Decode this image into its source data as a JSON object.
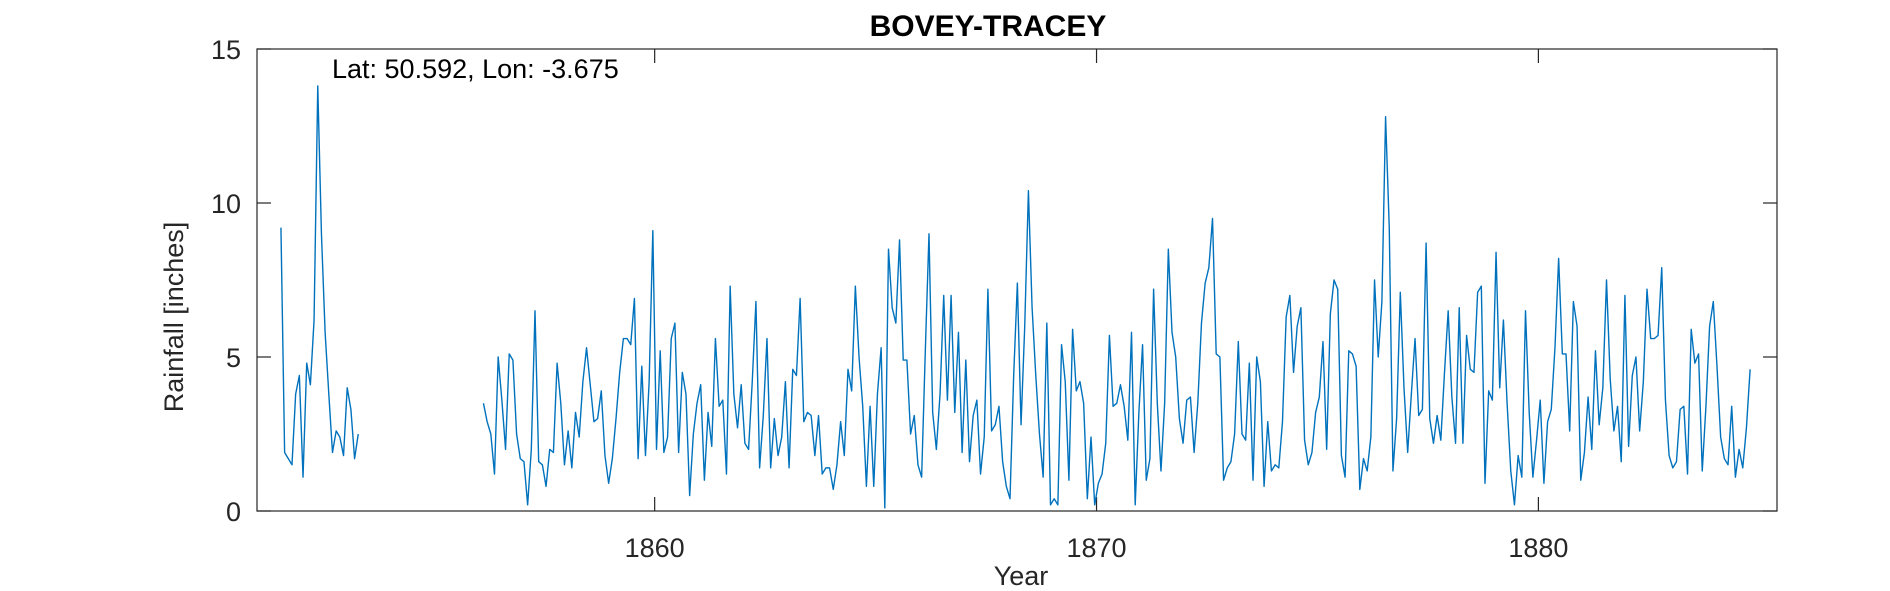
{
  "chart_data": {
    "type": "line",
    "title": "BOVEY-TRACEY",
    "xlabel": "Year",
    "ylabel": "Rainfall [inches]",
    "annotation": "Lat: 50.592, Lon: -3.675",
    "xlim": [
      1851.0,
      1885.4
    ],
    "ylim": [
      0,
      15
    ],
    "xticks": [
      1860,
      1870,
      1880
    ],
    "yticks": [
      0,
      5,
      10,
      15
    ],
    "grid": false,
    "color": "#0072BD",
    "series": [
      {
        "segments": [
          {
            "start": 1851.5417,
            "step": 0.083333,
            "values": [
              9.2,
              1.9,
              1.7,
              1.5,
              3.8,
              4.4,
              1.1,
              4.8,
              4.1,
              6.2,
              13.8,
              9.0,
              5.8,
              3.8,
              1.9,
              2.6,
              2.4,
              1.8,
              4.0,
              3.3,
              1.7,
              2.5
            ]
          },
          {
            "start": 1856.125,
            "step": 0.083333,
            "values": [
              3.5,
              2.9,
              2.5,
              1.2,
              5.0,
              3.6,
              2.0,
              5.1,
              4.9,
              2.5,
              1.7,
              1.6,
              0.2,
              2.0,
              6.5,
              1.6,
              1.5,
              0.8,
              2.0,
              1.9,
              4.8,
              3.5,
              1.5,
              2.6,
              1.4,
              3.2,
              2.4,
              4.2,
              5.3,
              4.1,
              2.9,
              3.0,
              3.9,
              1.8,
              0.9,
              1.7,
              3.0,
              4.5,
              5.6,
              5.6,
              5.4,
              6.9,
              1.7,
              4.7,
              1.8,
              4.2,
              9.1,
              2.0,
              5.2,
              1.9,
              2.4,
              5.6,
              6.1,
              1.9,
              4.5,
              3.8,
              0.5,
              2.5,
              3.5,
              4.1,
              1.0,
              3.2,
              2.1,
              5.6,
              3.4,
              3.6,
              1.2,
              7.3,
              3.8,
              2.7,
              4.1,
              2.2,
              2.0,
              4.2,
              6.8,
              1.4,
              3.1,
              5.6,
              1.4,
              3.0,
              1.8,
              2.4,
              4.2,
              1.4,
              4.6,
              4.4,
              6.9,
              2.9,
              3.2,
              3.1,
              1.8,
              3.1,
              1.2,
              1.4,
              1.4,
              0.7,
              1.5,
              2.9,
              1.8,
              4.6,
              3.9,
              7.3,
              5.0,
              3.4,
              0.8,
              3.4,
              0.8,
              3.8,
              5.3,
              0.1,
              8.5,
              6.6,
              6.1,
              8.8,
              4.9,
              4.9,
              2.5,
              3.1,
              1.5,
              1.1,
              5.2,
              9.0,
              3.2,
              2.0,
              3.8,
              7.0,
              3.6,
              7.0,
              3.2,
              5.8,
              1.9,
              4.9,
              1.6,
              3.1,
              3.6,
              1.2,
              2.4,
              7.2,
              2.6,
              2.8,
              3.4,
              1.6,
              0.8,
              0.4,
              4.4,
              7.4,
              2.8,
              6.0,
              10.4,
              6.6,
              4.4,
              2.5,
              1.1,
              6.1,
              0.2,
              0.4,
              0.2,
              5.4,
              4.2,
              1.0,
              5.9,
              3.9,
              4.2,
              3.5,
              0.4,
              2.4,
              0.2,
              0.9,
              1.2,
              2.2,
              5.7,
              3.4,
              3.5,
              4.1,
              3.4,
              2.3,
              5.8,
              0.2,
              3.2,
              5.4,
              1.0,
              1.7,
              7.2,
              3.5,
              1.3,
              3.5,
              8.5,
              5.8,
              5.0,
              3.0,
              2.2,
              3.6,
              3.7,
              1.9,
              3.5,
              6.1,
              7.4,
              7.9,
              9.5,
              5.1,
              5.0,
              1.0,
              1.4,
              1.6,
              2.5,
              5.5,
              2.5,
              2.3,
              4.8,
              1.0,
              5.0,
              4.2,
              0.8,
              2.9,
              1.3,
              1.5,
              1.4,
              2.9,
              6.3,
              7.0,
              4.5,
              6.0,
              6.6,
              2.3,
              1.5,
              1.9,
              3.2,
              3.7,
              5.5,
              2.0,
              6.4,
              7.5,
              7.2,
              1.8,
              1.1,
              5.2,
              5.1,
              4.7,
              0.7,
              1.7,
              1.3,
              2.4,
              7.5,
              5.0,
              6.8,
              12.8,
              9.2,
              1.3,
              3.0,
              7.1,
              4.0,
              1.9,
              3.8,
              5.6,
              3.1,
              3.3,
              8.7,
              3.0,
              2.2,
              3.1,
              2.3,
              4.5,
              6.5,
              3.7,
              2.2,
              6.6,
              2.2,
              5.7,
              4.6,
              4.5,
              7.1,
              7.3,
              0.9,
              3.9,
              3.6,
              8.4,
              4.0,
              6.2,
              3.5,
              1.3,
              0.2,
              1.8,
              1.1,
              6.5,
              3.2,
              1.1,
              2.3,
              3.6,
              0.9,
              2.9,
              3.3,
              5.3,
              8.2,
              5.1,
              5.1,
              2.6,
              6.8,
              6.0,
              1.0,
              1.9,
              3.7,
              2.0,
              5.2,
              2.8,
              4.0,
              7.5,
              4.3,
              2.6,
              3.4,
              1.6,
              7.0,
              2.1,
              4.4,
              5.0,
              2.6,
              4.2,
              7.2,
              5.6,
              5.6,
              5.7,
              7.9,
              3.6,
              1.8,
              1.4,
              1.6,
              3.3,
              3.4,
              1.2,
              5.9,
              4.8,
              5.1,
              1.3,
              3.4,
              6.0,
              6.8,
              4.7,
              2.4,
              1.7,
              1.5,
              3.4,
              1.1,
              2.0,
              1.4,
              2.7,
              4.6
            ]
          }
        ]
      }
    ]
  }
}
